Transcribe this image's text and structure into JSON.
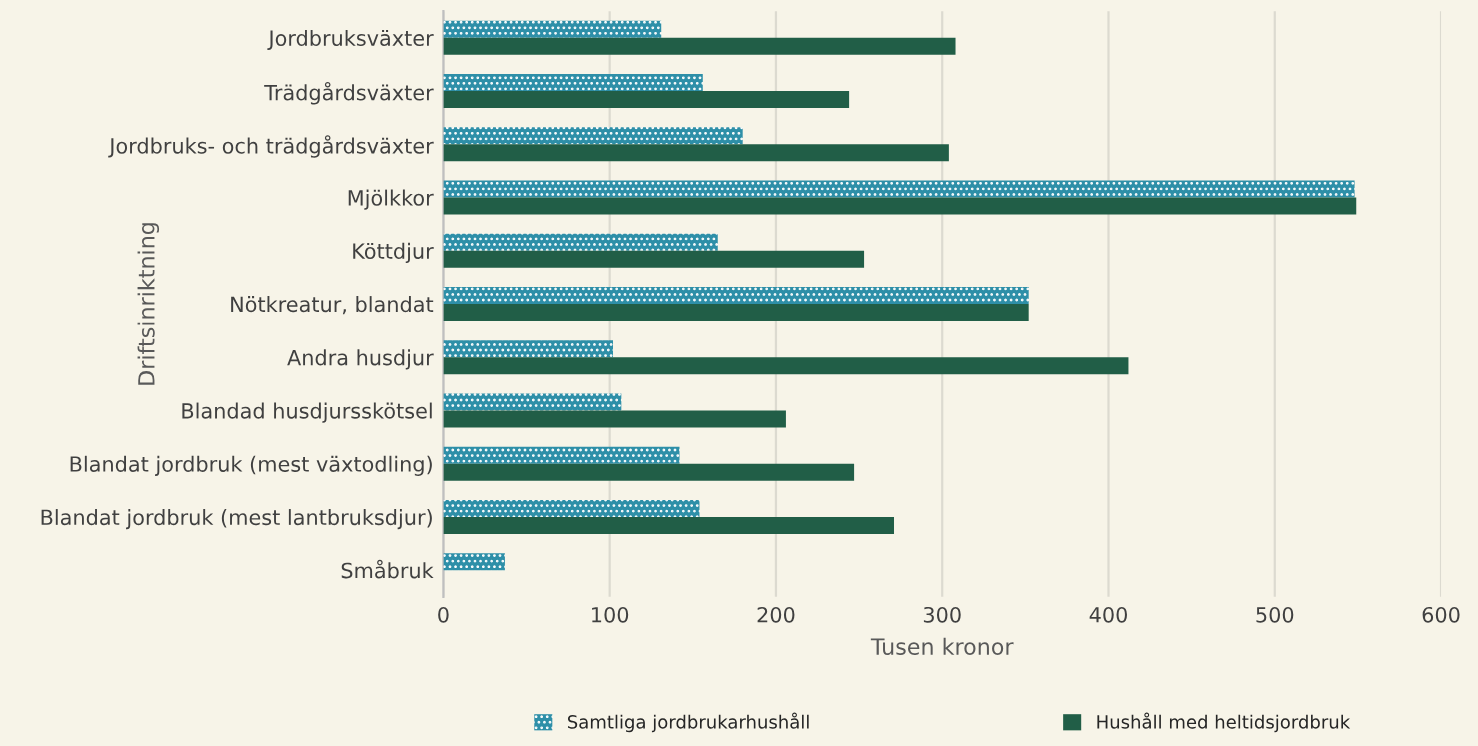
{
  "chart_data": {
    "type": "bar",
    "orientation": "horizontal",
    "xlabel": "Tusen kronor",
    "ylabel": "Driftsinriktning",
    "categories": [
      "Jordbruksväxter",
      "Trädgårdsväxter",
      "Jordbruks- och trädgårdsväxter",
      "Mjölkkor",
      "Köttdjur",
      "Nötkreatur, blandat",
      "Andra husdjur",
      "Blandad husdjursskötsel",
      "Blandat jordbruk (mest växtodling)",
      "Blandat jordbruk (mest lantbruksdjur)",
      "Småbruk"
    ],
    "series": [
      {
        "name": "Samtliga jordbrukarhushåll",
        "color": "#2e8fa8",
        "values": [
          131,
          156,
          180,
          548,
          165,
          352,
          102,
          107,
          142,
          154,
          37
        ]
      },
      {
        "name": "Hushåll med heltidsjordbruk",
        "color": "#215e47",
        "values": [
          308,
          244,
          304,
          549,
          253,
          352,
          412,
          206,
          247,
          271,
          null
        ]
      }
    ],
    "xlim": [
      0,
      600
    ],
    "xticks": [
      0,
      100,
      200,
      300,
      400,
      500,
      600
    ],
    "grid": "x",
    "legend": "bottom"
  }
}
